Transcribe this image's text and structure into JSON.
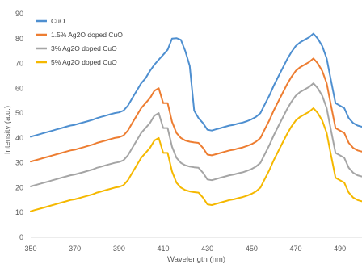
{
  "chart_data": {
    "type": "line",
    "title": "",
    "xlabel": "Wavelength (nm)",
    "ylabel": "Intensity (a.u.)",
    "xlim": [
      350,
      500
    ],
    "ylim": [
      0,
      90
    ],
    "x_ticks": [
      350,
      370,
      390,
      410,
      430,
      450,
      470,
      490
    ],
    "y_ticks": [
      0,
      10,
      20,
      30,
      40,
      50,
      60,
      70,
      80,
      90
    ],
    "grid": false,
    "legend_position": "top-left",
    "x": [
      350,
      352,
      354,
      356,
      358,
      360,
      362,
      364,
      366,
      368,
      370,
      372,
      374,
      376,
      378,
      380,
      382,
      384,
      386,
      388,
      390,
      392,
      394,
      396,
      398,
      400,
      402,
      404,
      406,
      408,
      410,
      412,
      414,
      416,
      418,
      420,
      422,
      424,
      426,
      428,
      430,
      432,
      434,
      436,
      438,
      440,
      442,
      444,
      446,
      448,
      450,
      452,
      454,
      456,
      458,
      460,
      462,
      464,
      466,
      468,
      470,
      472,
      474,
      476,
      478,
      480,
      482,
      484,
      486,
      488,
      490,
      492,
      494,
      496,
      498,
      500
    ],
    "series": [
      {
        "name": "CuO",
        "color": "#4e8fd0",
        "width": 2,
        "values": [
          40.5,
          41,
          41.5,
          42,
          42.5,
          43,
          43.5,
          44,
          44.5,
          45,
          45.3,
          45.8,
          46.3,
          46.8,
          47.3,
          48,
          48.5,
          49,
          49.5,
          50,
          50.3,
          51,
          53,
          56,
          59,
          62,
          64,
          67,
          69.5,
          71.5,
          73.5,
          75.5,
          80,
          80.2,
          79.5,
          75,
          69,
          51,
          48,
          46,
          43.3,
          43,
          43.5,
          44,
          44.5,
          45,
          45.3,
          45.8,
          46.2,
          46.8,
          47.5,
          48.5,
          50,
          53.5,
          57,
          61,
          64.5,
          68,
          71.5,
          74.5,
          77,
          78.5,
          79.5,
          80.5,
          82,
          80,
          77,
          72,
          63,
          54,
          53,
          52,
          48,
          46,
          45,
          44.5
        ]
      },
      {
        "name": "1.5% Ag2O doped CuO",
        "color": "#ed7d31",
        "width": 2,
        "values": [
          30.5,
          31,
          31.5,
          32,
          32.5,
          33,
          33.5,
          34,
          34.5,
          35,
          35.3,
          35.8,
          36.3,
          36.8,
          37.3,
          38,
          38.5,
          39,
          39.5,
          40,
          40.3,
          41,
          43,
          46,
          49,
          52,
          54,
          56,
          59,
          60,
          54,
          54,
          46.5,
          42,
          40,
          39,
          38.5,
          38.2,
          38,
          36,
          33.3,
          33,
          33.5,
          34,
          34.5,
          35,
          35.3,
          35.8,
          36.2,
          36.8,
          37.5,
          38.5,
          40,
          43.5,
          47,
          51,
          54.5,
          58,
          61.5,
          64.5,
          67,
          68.5,
          69.5,
          70.5,
          72,
          70,
          67,
          62,
          53,
          44,
          43,
          42,
          38,
          36,
          35,
          34.5
        ]
      },
      {
        "name": "3% Ag2O doped CuO",
        "color": "#a5a5a5",
        "width": 2,
        "values": [
          20.5,
          21,
          21.5,
          22,
          22.5,
          23,
          23.5,
          24,
          24.5,
          25,
          25.3,
          25.8,
          26.3,
          26.8,
          27.3,
          28,
          28.5,
          29,
          29.5,
          30,
          30.3,
          31,
          33,
          36,
          39,
          42,
          44,
          46,
          49,
          50,
          44,
          44,
          36.5,
          32,
          30,
          29,
          28.5,
          28.2,
          28,
          26,
          23.3,
          23,
          23.5,
          24,
          24.5,
          25,
          25.3,
          25.8,
          26.2,
          26.8,
          27.5,
          28.5,
          30,
          33.5,
          37,
          41,
          44.5,
          48,
          51.5,
          54.5,
          57,
          58.5,
          59.5,
          60.5,
          62,
          60,
          57,
          52,
          43,
          34,
          33,
          32,
          28,
          26,
          25,
          24.5
        ]
      },
      {
        "name": "5% Ag2O doped CuO",
        "color": "#f5b800",
        "width": 2,
        "values": [
          10.5,
          11,
          11.5,
          12,
          12.5,
          13,
          13.5,
          14,
          14.5,
          15,
          15.3,
          15.8,
          16.3,
          16.8,
          17.3,
          18,
          18.5,
          19,
          19.5,
          20,
          20.3,
          21,
          23,
          26,
          29,
          32,
          34,
          36,
          39,
          40,
          34,
          34,
          26.5,
          22,
          20,
          19,
          18.5,
          18.2,
          18,
          16,
          13.3,
          13,
          13.5,
          14,
          14.5,
          15,
          15.3,
          15.8,
          16.2,
          16.8,
          17.5,
          18.5,
          20,
          23.5,
          27,
          31,
          34.5,
          38,
          41.5,
          44.5,
          47,
          48.5,
          49.5,
          50.5,
          52,
          50,
          47,
          42,
          33,
          24,
          23,
          22,
          18,
          16,
          15,
          14.5
        ]
      }
    ]
  }
}
